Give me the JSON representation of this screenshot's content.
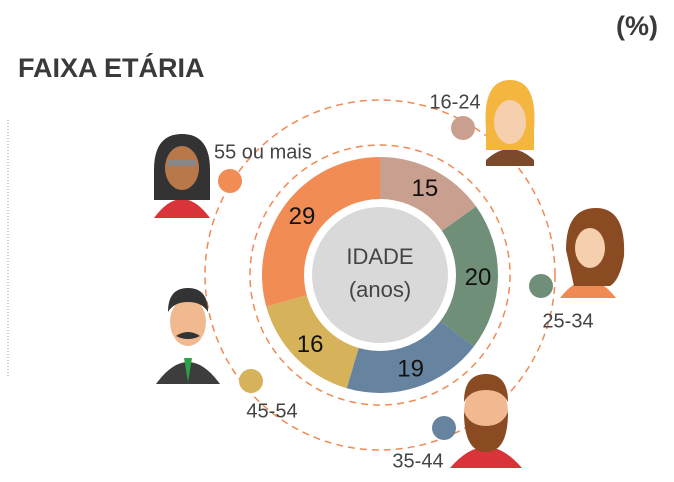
{
  "chart_data": {
    "type": "donut",
    "title": "FAIXA ETÁRIA",
    "unit": "(%)",
    "center_label": [
      "IDADE",
      "(anos)"
    ],
    "categories": [
      "16-24",
      "25-34",
      "35-44",
      "45-54",
      "55 ou mais"
    ],
    "values": [
      15,
      20,
      19,
      16,
      29
    ],
    "colors": [
      "#c9a08f",
      "#6f8f78",
      "#6684a0",
      "#d6b25a",
      "#f18c55"
    ]
  }
}
